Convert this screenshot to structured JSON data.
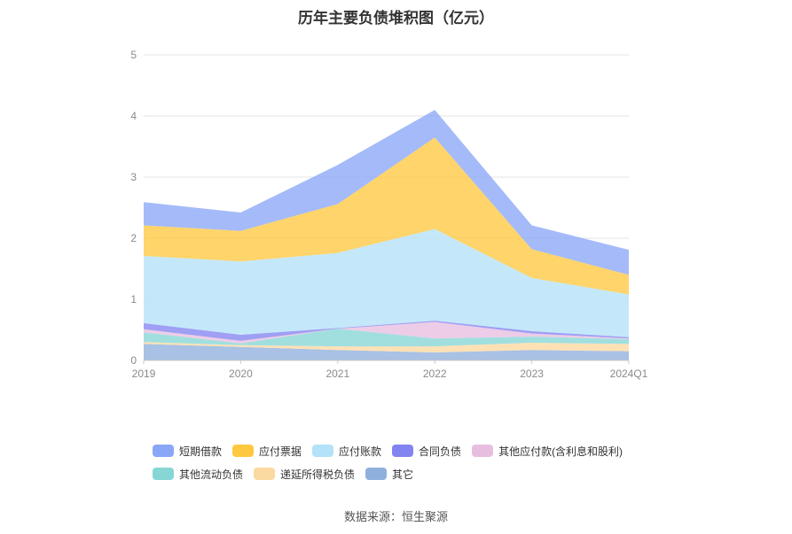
{
  "chart_data": {
    "type": "area",
    "stacked": true,
    "title": "历年主要负债堆积图（亿元）",
    "categories": [
      "2019",
      "2020",
      "2021",
      "2022",
      "2023",
      "2024Q1"
    ],
    "ylim": [
      0,
      5
    ],
    "yticks": [
      "0",
      "1",
      "2",
      "3",
      "4",
      "5"
    ],
    "grid": true,
    "legend_position": "bottom",
    "series": [
      {
        "name": "其它",
        "color": "#8fb0dc",
        "values": [
          0.27,
          0.22,
          0.17,
          0.13,
          0.17,
          0.15
        ]
      },
      {
        "name": "递延所得税负债",
        "color": "#fcd9a0",
        "values": [
          0.03,
          0.03,
          0.06,
          0.1,
          0.12,
          0.12
        ]
      },
      {
        "name": "其他流动负债",
        "color": "#86d6d6",
        "values": [
          0.16,
          0.03,
          0.29,
          0.13,
          0.1,
          0.08
        ]
      },
      {
        "name": "其他应付款(含利息和股利)",
        "color": "#e8bee0",
        "values": [
          0.05,
          0.04,
          0.0,
          0.27,
          0.05,
          0.01
        ]
      },
      {
        "name": "合同负债",
        "color": "#8484f0",
        "values": [
          0.1,
          0.1,
          0.01,
          0.02,
          0.04,
          0.02
        ]
      },
      {
        "name": "应付账款",
        "color": "#b3e2f9",
        "values": [
          1.1,
          1.2,
          1.23,
          1.5,
          0.87,
          0.7
        ]
      },
      {
        "name": "应付票据",
        "color": "#ffc840",
        "values": [
          0.5,
          0.5,
          0.8,
          1.5,
          0.47,
          0.32
        ]
      },
      {
        "name": "短期借款",
        "color": "#8aa6f7",
        "values": [
          0.38,
          0.3,
          0.64,
          0.45,
          0.39,
          0.41
        ]
      }
    ]
  },
  "legend": {
    "row1": [
      {
        "label": "短期借款",
        "color": "#8aa6f7"
      },
      {
        "label": "应付票据",
        "color": "#ffc840"
      },
      {
        "label": "应付账款",
        "color": "#b3e2f9"
      },
      {
        "label": "合同负债",
        "color": "#8484f0"
      },
      {
        "label": "其他应付款(含利息和股利)",
        "color": "#e8bee0"
      }
    ],
    "row2": [
      {
        "label": "其他流动负债",
        "color": "#86d6d6"
      },
      {
        "label": "递延所得税负债",
        "color": "#fcd9a0"
      },
      {
        "label": "其它",
        "color": "#8fb0dc"
      }
    ]
  },
  "source": "数据来源：恒生聚源"
}
